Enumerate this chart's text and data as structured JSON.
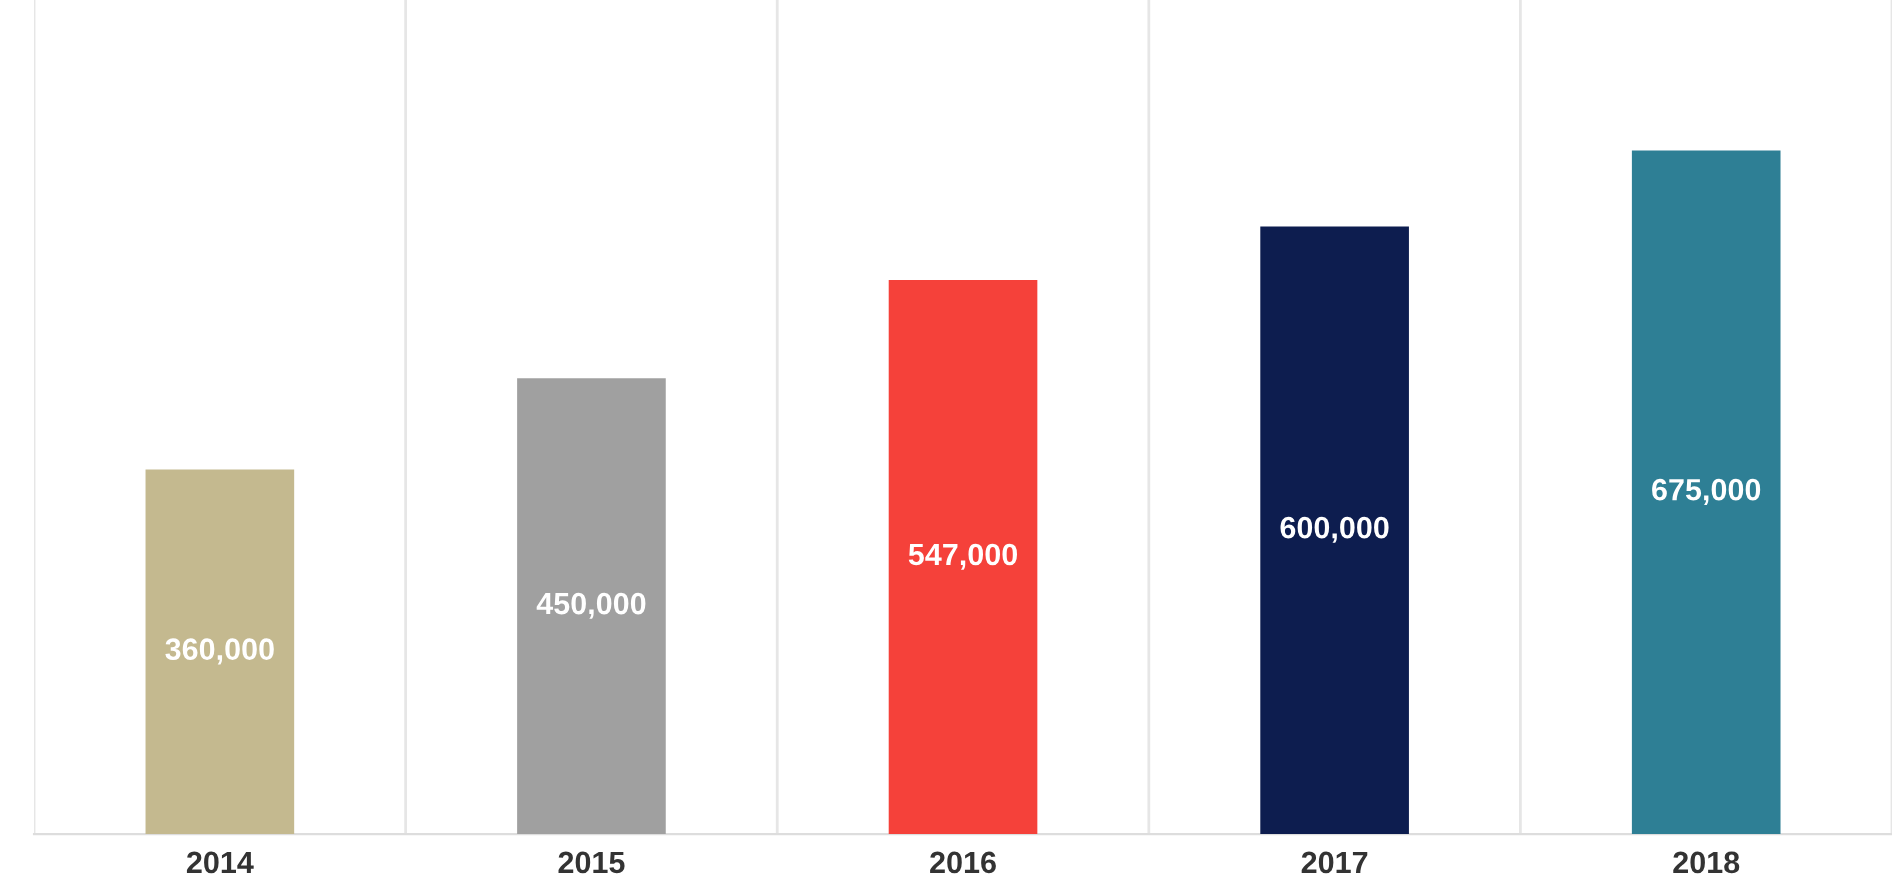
{
  "chart_data": {
    "type": "bar",
    "categories": [
      "2014",
      "2015",
      "2016",
      "2017",
      "2018"
    ],
    "values": [
      360000,
      450000,
      547000,
      600000,
      675000
    ],
    "colors": [
      "#c4b98f",
      "#a0a0a0",
      "#f5413a",
      "#0d1d4f",
      "#2e7f95"
    ],
    "value_labels": [
      "360,000",
      "450,000",
      "547,000",
      "600,000",
      "675,000"
    ],
    "grid": "x",
    "legend": false
  }
}
